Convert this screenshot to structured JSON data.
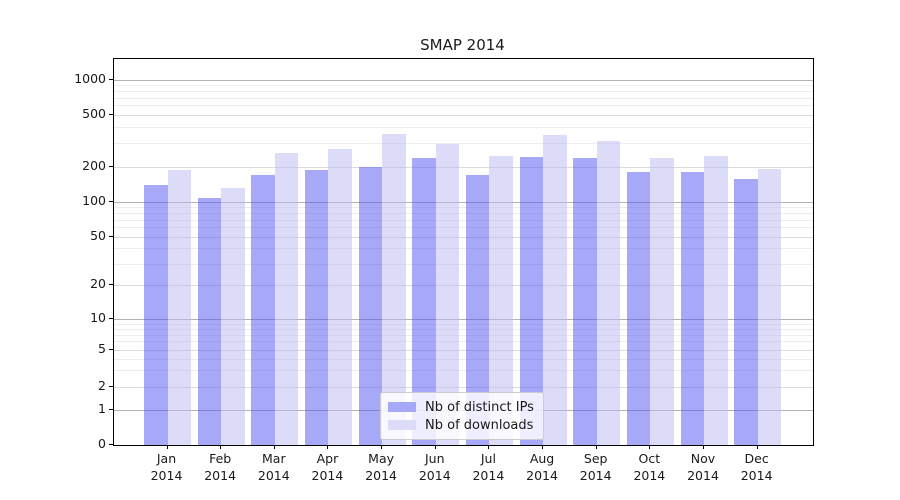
{
  "chart_data": {
    "type": "bar",
    "title": "SMAP 2014",
    "categories": [
      "Jan",
      "Feb",
      "Mar",
      "Apr",
      "May",
      "Jun",
      "Jul",
      "Aug",
      "Sep",
      "Oct",
      "Nov",
      "Dec"
    ],
    "year_label": "2014",
    "series": [
      {
        "name": "Nb of distinct IPs",
        "color": "#a8a8f8",
        "values": [
          140,
          107,
          170,
          188,
          200,
          234,
          170,
          235,
          233,
          181,
          179,
          155
        ]
      },
      {
        "name": "Nb of downloads",
        "color": "#dcdcf8",
        "values": [
          188,
          130,
          253,
          272,
          356,
          299,
          239,
          350,
          314,
          233,
          240,
          190
        ]
      }
    ],
    "yscale": "symlog",
    "ylim": [
      0,
      1000
    ],
    "y_ticks": [
      0,
      1,
      2,
      5,
      10,
      20,
      50,
      100,
      200,
      500,
      1000
    ],
    "grid": true,
    "legend_position": "bottom-center",
    "colors": {
      "major_grid": "#b3b3b3",
      "minor_grid": "#ededed",
      "axis": "#000000",
      "text": "#1a1a1a",
      "background": "#ffffff"
    }
  }
}
